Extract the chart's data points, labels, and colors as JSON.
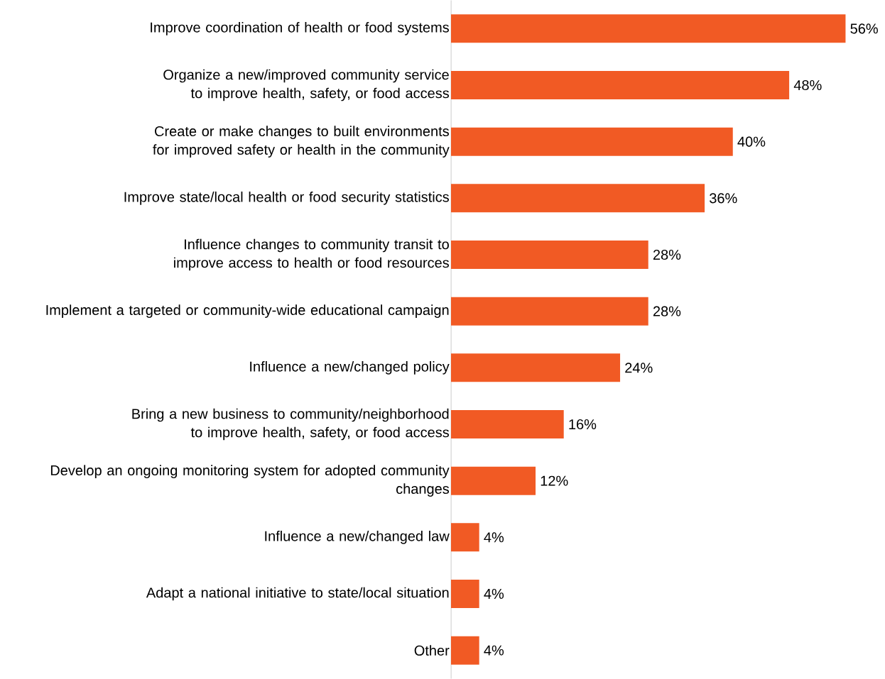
{
  "chart_data": {
    "type": "bar",
    "orientation": "horizontal",
    "categories": [
      "Improve coordination of health or food systems",
      "Organize a new/improved community service to improve health, safety, or food access",
      "Create or make changes to built environments for improved safety or health in the community",
      "Improve state/local health or food security statistics",
      "Influence changes to community transit to improve access to health or food resources",
      "Implement a targeted or community-wide educational campaign",
      "Influence a new/changed policy",
      "Bring a new business to community/neighborhood to improve health, safety, or food access",
      "Develop an ongoing monitoring system for adopted community changes",
      "Influence a new/changed law",
      "Adapt a national initiative to state/local situation",
      "Other"
    ],
    "values": [
      56,
      48,
      40,
      36,
      28,
      28,
      24,
      16,
      12,
      4,
      4,
      4
    ],
    "value_labels": [
      "56%",
      "48%",
      "40%",
      "36%",
      "28%",
      "28%",
      "24%",
      "16%",
      "12%",
      "4%",
      "4%",
      "4%"
    ],
    "color": "#f15a24"
  }
}
